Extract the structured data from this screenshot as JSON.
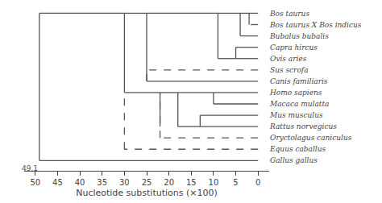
{
  "chart_data": {
    "type": "tree",
    "xlabel": "Nucleotide substitutions (×100)",
    "categories": [
      "Bos taurus",
      "Bos taurus X Bos indicus",
      "Bubalus bubalis",
      "Capra hircus",
      "Ovis aries",
      "Sus scrofa",
      "Canis familiaris",
      "Homo sapiens",
      "Macaca mulatta",
      "Mus musculus",
      "Rattus norvegicus",
      "Oryctolagus caniculus",
      "Equus caballus",
      "Gallus gallus"
    ],
    "xlim": [
      52.5,
      -2.5
    ],
    "xticks": [
      50,
      45,
      40,
      35,
      30,
      25,
      20,
      15,
      10,
      5,
      0
    ],
    "grid": false,
    "series": [
      {
        "line_style": "solid",
        "color": "#555555",
        "x": [
          0,
          2,
          null,
          2,
          2,
          null,
          0,
          4,
          null,
          4,
          4,
          null,
          2,
          4,
          null,
          0,
          5,
          null,
          0,
          5,
          null,
          5,
          5,
          null,
          4,
          9,
          null,
          5,
          9,
          null,
          9,
          9,
          null,
          0,
          25,
          null,
          25,
          25,
          null,
          9,
          25,
          null,
          0,
          10,
          null,
          0,
          10,
          null,
          10,
          10,
          null,
          0,
          13,
          null,
          0,
          13,
          null,
          13,
          13,
          null,
          10,
          18,
          null,
          13,
          18,
          null,
          18,
          18,
          null,
          18,
          22,
          null,
          22,
          22,
          null,
          22,
          30,
          null,
          25,
          30,
          null,
          30,
          30,
          null,
          0,
          49.1,
          null,
          49.1,
          49.1,
          null,
          30,
          49.1
        ],
        "values": [
          "Bos taurus",
          "Bos taurus",
          null,
          "Bos taurus X Bos indicus",
          "Bos taurus",
          null,
          "Bubalus bubalis",
          "Bubalus bubalis",
          null,
          "Bubalus bubalis",
          "Bos taurus",
          null,
          "Bos taurus",
          "Bos taurus",
          null,
          "Capra hircus",
          "Capra hircus",
          null,
          "Ovis aries",
          "Ovis aries",
          null,
          "Ovis aries",
          "Capra hircus",
          null,
          "Bos taurus",
          "Bos taurus",
          null,
          "Ovis aries",
          "Ovis aries",
          null,
          "Ovis aries",
          "Bos taurus",
          null,
          "Canis familiaris",
          "Canis familiaris",
          null,
          "Canis familiaris",
          "Bos taurus",
          null,
          "Bos taurus",
          "Bos taurus",
          null,
          "Homo sapiens",
          "Homo sapiens",
          null,
          "Macaca mulatta",
          "Macaca mulatta",
          null,
          "Macaca mulatta",
          "Homo sapiens",
          null,
          "Mus musculus",
          "Mus musculus",
          null,
          "Rattus norvegicus",
          "Rattus norvegicus",
          null,
          "Rattus norvegicus",
          "Mus musculus",
          null,
          "Homo sapiens",
          "Homo sapiens",
          null,
          "Rattus norvegicus",
          "Rattus norvegicus",
          null,
          "Rattus norvegicus",
          "Homo sapiens",
          null,
          "Homo sapiens",
          "Homo sapiens",
          null,
          "Rattus norvegicus",
          "Homo sapiens",
          null,
          "Homo sapiens",
          "Homo sapiens",
          null,
          "Bos taurus",
          "Bos taurus",
          null,
          "Homo sapiens",
          "Bos taurus",
          null,
          "Gallus gallus",
          "Gallus gallus",
          null,
          "Gallus gallus",
          "Bos taurus",
          null,
          "Bos taurus",
          "Bos taurus"
        ]
      },
      {
        "line_style": "dashed",
        "color": "#555555",
        "x": [
          0,
          2,
          null,
          0,
          25,
          null,
          25,
          25,
          null,
          0,
          22,
          null,
          22,
          22,
          null,
          0,
          30,
          null,
          30,
          30
        ],
        "values": [
          "Bos taurus X Bos indicus",
          "Bos taurus X Bos indicus",
          null,
          "Sus scrofa",
          "Sus scrofa",
          null,
          "Canis familiaris",
          "Sus scrofa",
          null,
          "Oryctolagus caniculus",
          "Oryctolagus caniculus",
          null,
          "Oryctolagus caniculus",
          "Homo sapiens",
          null,
          "Equus caballus",
          "Equus caballus",
          null,
          "Equus caballus",
          "Homo sapiens"
        ]
      }
    ],
    "annotations": [
      {
        "text": "49.1",
        "x": 49.1
      }
    ]
  }
}
